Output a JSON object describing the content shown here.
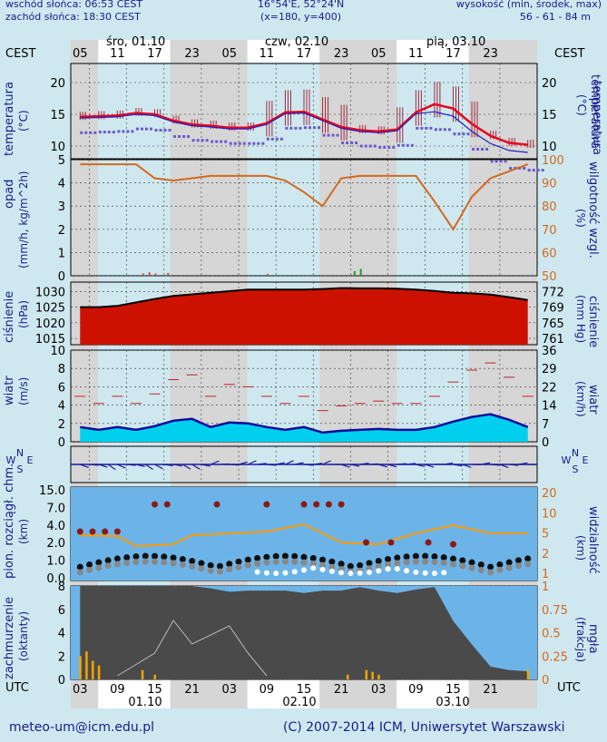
{
  "header": {
    "sunrise": "wschód słońca: 06:53 CEST",
    "sunset": "zachód słońca: 18:30 CEST",
    "coords": "16°54'E, 52°24'N",
    "grid": "(x=180,  y=400)",
    "alt_label": "wysokość (min, środek, max)",
    "alt_values": "56 - 61 - 84 m"
  },
  "time_axis": {
    "top_tz": "CEST",
    "bottom_tz": "UTC",
    "top_hours": [
      "05",
      "11",
      "17",
      "23",
      "05",
      "11",
      "17",
      "23",
      "05",
      "11",
      "17",
      "23"
    ],
    "top_dates": [
      "śro, 01.10",
      "czw, 02.10",
      "pią, 03.10"
    ],
    "bottom_hours": [
      "03",
      "09",
      "15",
      "21",
      "03",
      "09",
      "15",
      "21",
      "03",
      "09",
      "15",
      "21"
    ],
    "bottom_dates": [
      "01.10",
      "02.10",
      "03.10"
    ]
  },
  "panels": {
    "temperature": {
      "left_label": "temperatura",
      "left_unit": "(°C)",
      "right_label": "temperatura",
      "right_unit": "(°C)",
      "ticks": [
        "20",
        "15",
        "10"
      ]
    },
    "precip": {
      "left_label": "opad",
      "left_unit": "(mm/h, kg/m^2h)",
      "left_ticks": [
        "5",
        "4",
        "3",
        "2",
        "1",
        "0"
      ],
      "right_label": "wilgotność wzgl.",
      "right_unit": "(%)",
      "right_ticks": [
        "100",
        "90",
        "80",
        "70",
        "60",
        "50"
      ]
    },
    "pressure": {
      "left_label": "ciśnienie",
      "left_unit": "(hPa)",
      "left_ticks": [
        "1030",
        "1025",
        "1020",
        "1015"
      ],
      "right_label": "ciśnienie",
      "right_unit": "(mm Hg)",
      "right_ticks": [
        "772",
        "769",
        "765",
        "761"
      ]
    },
    "wind": {
      "left_label": "wiatr",
      "left_unit": "(m/s)",
      "left_ticks": [
        "10",
        "8",
        "6",
        "4",
        "2",
        "0"
      ],
      "right_label": "wiatr",
      "right_unit": "(km/h)",
      "right_ticks": [
        "36",
        "29",
        "22",
        "14",
        "7",
        "0"
      ]
    },
    "direction": {
      "compass": "N W E S"
    },
    "visibility": {
      "left_label": "pion. rozciągł. chm.",
      "left_unit": "(km)",
      "left_ticks": [
        "15.0",
        "7.0",
        "4.0",
        "2.0",
        "1.0",
        "0.0"
      ],
      "right_label": "widzialność",
      "right_unit": "(km)",
      "right_ticks": [
        "20",
        "10",
        "5",
        "2",
        "1"
      ]
    },
    "clouds": {
      "left_label": "zachmurzenie",
      "left_unit": "(oktanty)",
      "left_ticks": [
        "8",
        "6",
        "4",
        "2",
        "0"
      ],
      "right_label": "mgła",
      "right_unit": "(frakcja)",
      "right_ticks": [
        "1",
        "0.75",
        "0.5",
        "0.25",
        "0"
      ]
    }
  },
  "footer": {
    "email": "meteo-um@icm.edu.pl",
    "copyright": "(C) 2007-2014 ICM, Uniwersytet Warszawski"
  },
  "colors": {
    "night": "#d6d6d6",
    "day": "#ffffff",
    "temp": "#e8001c",
    "dew": "#6a5acd",
    "humidity": "#d2691e",
    "pressure": "#cc1100",
    "cloud": "#4a4a4a",
    "sky": "#6cb4e8",
    "text": "#1a1a8a"
  },
  "chart_data": {
    "type": "line",
    "x_hours_from_start": [
      0,
      3,
      6,
      9,
      12,
      15,
      18,
      21,
      24,
      27,
      30,
      33,
      36,
      39,
      42,
      45,
      48,
      51,
      54,
      57,
      60,
      63,
      66,
      69,
      72
    ],
    "series": [
      {
        "name": "temperatura",
        "values": [
          14.6,
          14.7,
          14.8,
          15.2,
          15.0,
          14.0,
          13.4,
          13.2,
          12.9,
          12.9,
          13.6,
          15.3,
          15.4,
          14.2,
          13.0,
          12.5,
          12.3,
          12.6,
          15.3,
          16.6,
          15.9,
          13.5,
          11.6,
          10.5,
          10.2
        ]
      },
      {
        "name": "wilgotność wzgl.",
        "values": [
          98,
          98,
          98,
          98,
          92,
          91,
          92,
          93,
          93,
          93,
          93,
          91,
          86,
          80,
          92,
          93,
          93,
          93,
          93,
          82,
          70,
          84,
          92,
          95,
          98
        ]
      },
      {
        "name": "ciśnienie",
        "values": [
          1025,
          1025,
          1025.4,
          1026.5,
          1027.6,
          1028.6,
          1029.1,
          1029.6,
          1030.1,
          1030.6,
          1030.6,
          1030.6,
          1030.6,
          1030.8,
          1031.1,
          1031.0,
          1031.0,
          1030.9,
          1030.6,
          1030.2,
          1029.6,
          1029.4,
          1029.0,
          1028.2,
          1027.3
        ]
      },
      {
        "name": "wiatr",
        "values": [
          1.6,
          1.3,
          1.6,
          1.3,
          1.7,
          2.3,
          2.5,
          1.6,
          2.1,
          2.0,
          1.6,
          1.3,
          1.6,
          1.0,
          1.2,
          1.3,
          1.4,
          1.3,
          1.3,
          1.6,
          2.2,
          2.7,
          3.0,
          2.4,
          1.6
        ]
      },
      {
        "name": "zachmurzenie",
        "values": [
          8,
          8,
          8,
          8,
          8,
          8,
          8,
          7.8,
          7.5,
          7.6,
          7.6,
          7.6,
          7.4,
          7.6,
          7.6,
          7.9,
          7.6,
          7.4,
          7.7,
          7.9,
          5.0,
          3.0,
          1.1,
          0.8,
          0.7
        ]
      }
    ],
    "ylim_temperature": [
      8,
      23
    ],
    "ylim_humidity": [
      50,
      100
    ],
    "ylim_pressure": [
      1013,
      1033
    ],
    "ylim_wind": [
      0,
      10
    ],
    "ylim_clouds": [
      0,
      8
    ]
  }
}
